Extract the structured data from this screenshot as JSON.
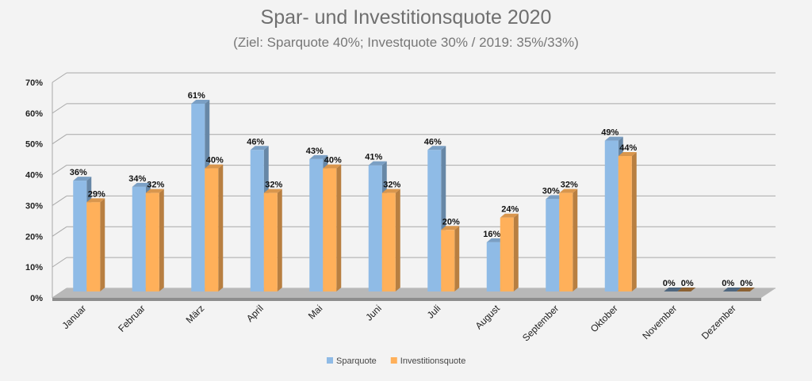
{
  "chart_data": {
    "type": "bar",
    "title": "Spar- und Investitionsquote 2020",
    "subtitle": "(Ziel: Sparquote 40%; Investquote 30% / 2019: 35%/33%)",
    "categories": [
      "Januar",
      "Februar",
      "März",
      "April",
      "Mai",
      "Juni",
      "Juli",
      "August",
      "September",
      "Oktober",
      "November",
      "Dezember"
    ],
    "series": [
      {
        "name": "Sparquote",
        "color": "#8fbbe6",
        "values": [
          36,
          34,
          61,
          46,
          43,
          41,
          46,
          16,
          30,
          49,
          0,
          0
        ]
      },
      {
        "name": "Investitionsquote",
        "color": "#ffb05a",
        "values": [
          29,
          32,
          40,
          32,
          40,
          32,
          20,
          24,
          32,
          44,
          0,
          0
        ]
      }
    ],
    "yticks": [
      "0%",
      "10%",
      "20%",
      "30%",
      "40%",
      "50%",
      "60%",
      "70%"
    ],
    "ylim": [
      0,
      70
    ],
    "value_suffix": "%",
    "grid": true,
    "legend": "bottom"
  }
}
